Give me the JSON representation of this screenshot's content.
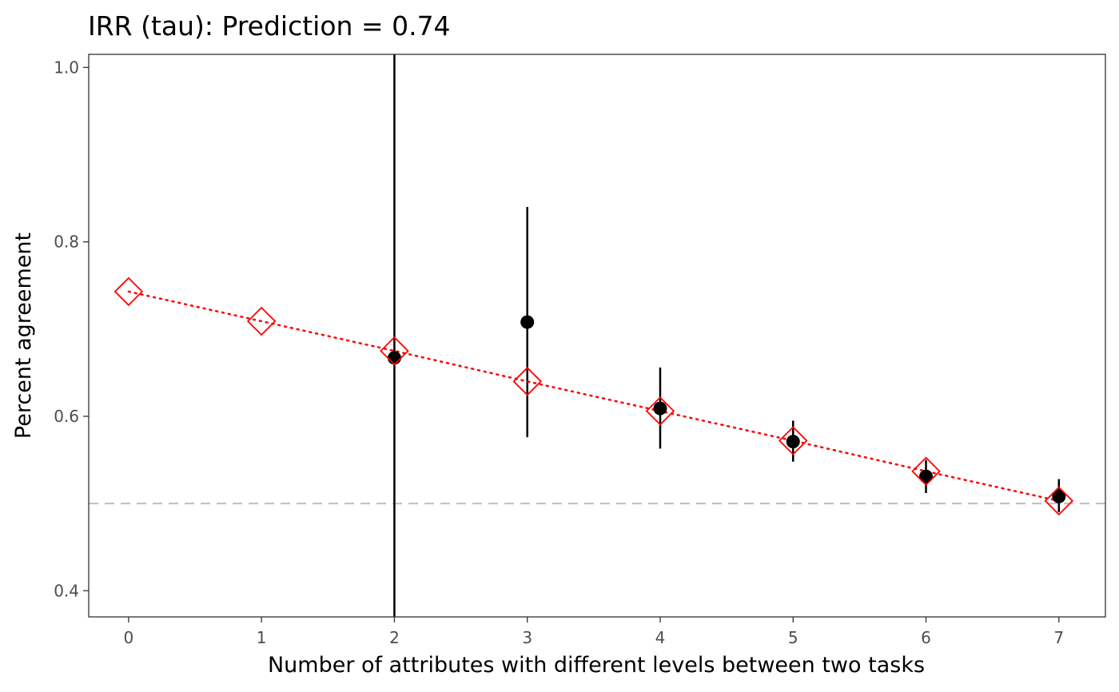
{
  "chart_data": {
    "type": "scatter",
    "title": "IRR (tau): Prediction = 0.74",
    "xlabel": "Number of attributes with different levels between two tasks",
    "ylabel": "Percent agreement",
    "xlim": [
      -0.3,
      7.35
    ],
    "ylim": [
      0.37,
      1.015
    ],
    "x_ticks": [
      0,
      1,
      2,
      3,
      4,
      5,
      6,
      7
    ],
    "x_tick_labels": [
      "0",
      "1",
      "2",
      "3",
      "4",
      "5",
      "6",
      "7"
    ],
    "y_ticks": [
      0.4,
      0.6,
      0.8,
      1.0
    ],
    "y_tick_labels": [
      "0.4",
      "0.6",
      "0.8",
      "1.0"
    ],
    "grid": false,
    "reference_line": {
      "y": 0.5,
      "style": "dashed",
      "color": "#bebebe"
    },
    "series": [
      {
        "kind": "observed",
        "marker": "filled-circle",
        "color": "#000000",
        "x": [
          2,
          3,
          4,
          5,
          6,
          7
        ],
        "y": [
          0.667,
          0.708,
          0.609,
          0.571,
          0.531,
          0.508
        ],
        "lower": [
          0.37,
          0.576,
          0.563,
          0.548,
          0.512,
          0.49
        ],
        "upper": [
          1.015,
          0.84,
          0.656,
          0.595,
          0.55,
          0.528
        ]
      },
      {
        "kind": "predicted",
        "marker": "open-diamond",
        "line": "dotted",
        "color": "#ff0000",
        "x": [
          0,
          1,
          2,
          3,
          4,
          5,
          6,
          7
        ],
        "y": [
          0.743,
          0.709,
          0.675,
          0.64,
          0.606,
          0.572,
          0.537,
          0.503
        ]
      }
    ]
  }
}
